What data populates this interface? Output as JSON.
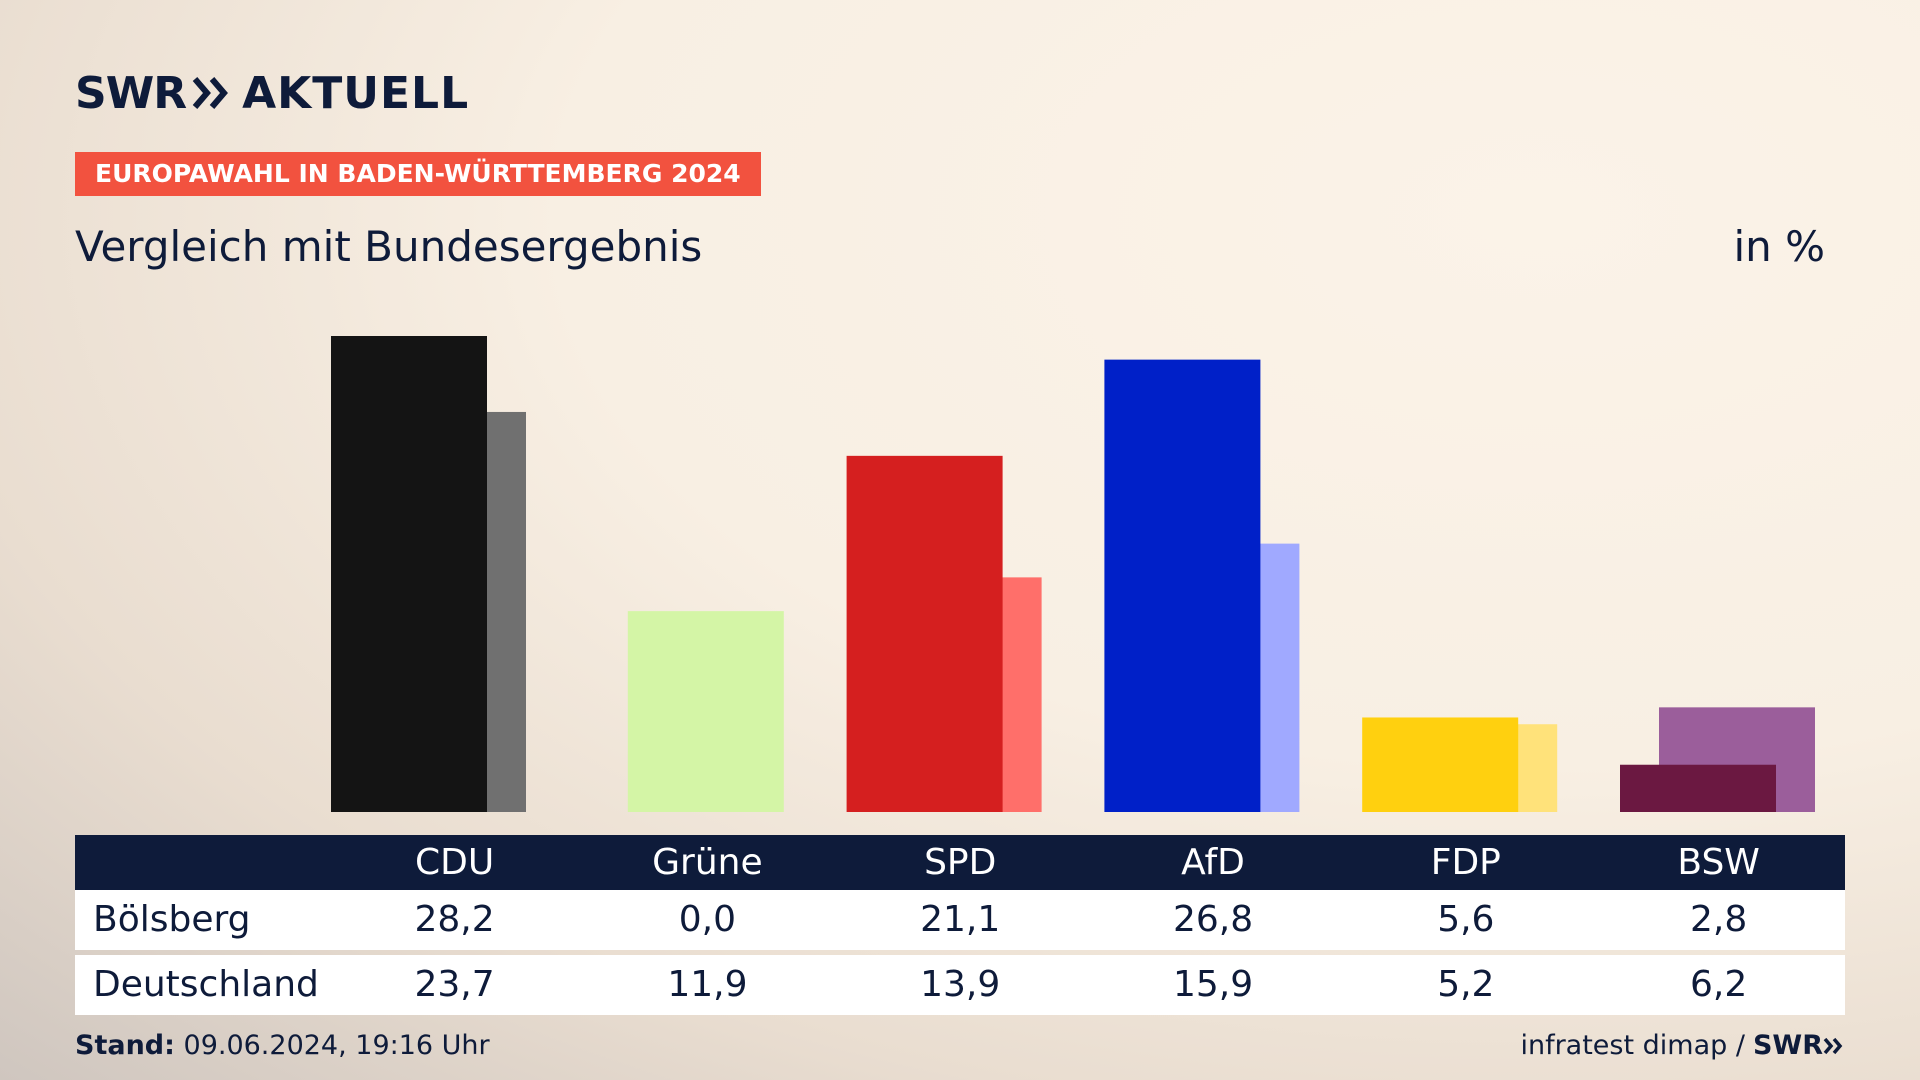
{
  "brand": {
    "swr": "SWR",
    "sub": "AKTUELL",
    "footer_swr": "SWR"
  },
  "tag": "EUROPAWAHL IN BADEN-WÜRTTEMBERG 2024",
  "subtitle": "Vergleich mit Bundesergebnis",
  "unit": "in %",
  "table": {
    "rows": [
      {
        "label": "Bölsberg",
        "values": [
          "28,2",
          "0,0",
          "21,1",
          "26,8",
          "5,6",
          "2,8"
        ]
      },
      {
        "label": "Deutschland",
        "values": [
          "23,7",
          "11,9",
          "13,9",
          "15,9",
          "5,2",
          "6,2"
        ]
      }
    ]
  },
  "footer": {
    "stand_label": "Stand:",
    "stand_value": "09.06.2024, 19:16 Uhr",
    "source": "infratest dimap /"
  },
  "chart_data": {
    "type": "bar",
    "categories": [
      "CDU",
      "Grüne",
      "SPD",
      "AfD",
      "FDP",
      "BSW"
    ],
    "series": [
      {
        "name": "Bölsberg",
        "values": [
          28.2,
          0.0,
          21.1,
          26.8,
          5.6,
          2.8
        ],
        "colors": [
          "#141414",
          "#d4f5a6",
          "#d51f1f",
          "#0020c8",
          "#ffd00f",
          "#6b1841"
        ]
      },
      {
        "name": "Deutschland",
        "values": [
          23.7,
          11.9,
          13.9,
          15.9,
          5.2,
          6.2
        ],
        "colors": [
          "#707070",
          "#d4f5a6",
          "#ff6f6a",
          "#a0a9ff",
          "#ffe27a",
          "#9b5e9b"
        ]
      }
    ],
    "ylim": [
      0,
      28.2
    ],
    "grid": false
  }
}
